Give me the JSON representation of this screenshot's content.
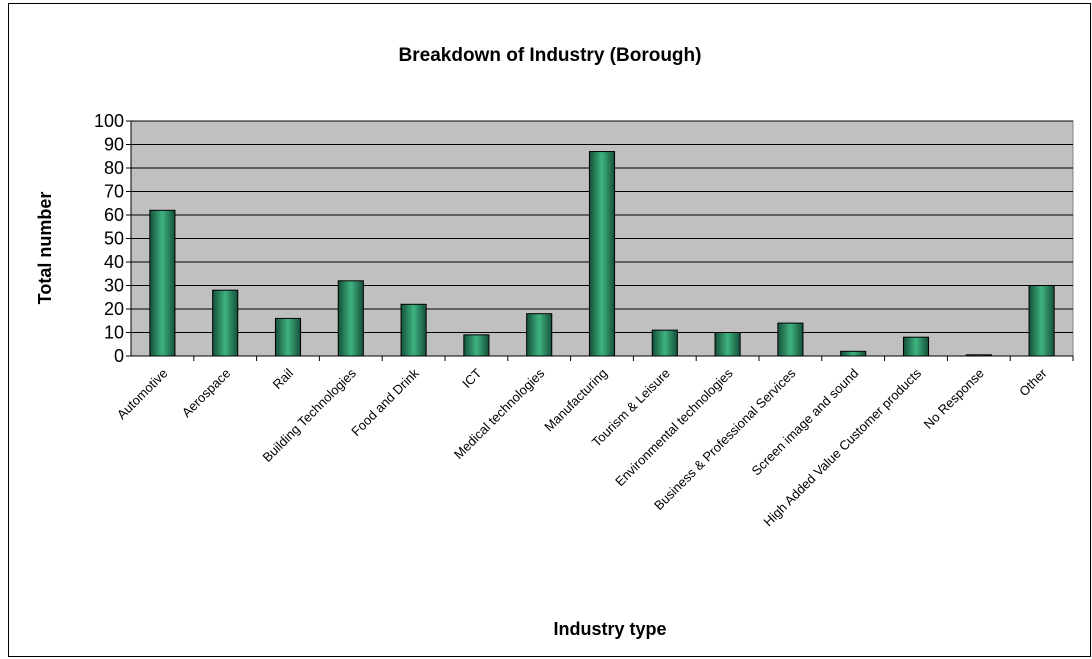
{
  "chart_data": {
    "type": "bar",
    "title": "Breakdown of Industry (Borough)",
    "xlabel": "Industry type",
    "ylabel": "Total number",
    "ylim": [
      0,
      100
    ],
    "yticks": [
      0,
      10,
      20,
      30,
      40,
      50,
      60,
      70,
      80,
      90,
      100
    ],
    "grid": true,
    "legend": "none",
    "colors": {
      "plot_background": "#c0c0c0",
      "bar_dark": "#14503a",
      "bar_light": "#3fb37f",
      "gridline": "#000000"
    },
    "categories": [
      "Automotive",
      "Aerospace",
      "Rail",
      "Building Technologies",
      "Food and Drink",
      "ICT",
      "Medical technologies",
      "Manufacturing",
      "Tourism & Leisure",
      "Environmental technologies",
      "Business & Professional Services",
      "Screen image and sound",
      "High Added Value Customer products",
      "No Response",
      "Other"
    ],
    "values": [
      62,
      28,
      16,
      32,
      22,
      9,
      18,
      87,
      11,
      10,
      14,
      2,
      8,
      0.5,
      30
    ]
  }
}
